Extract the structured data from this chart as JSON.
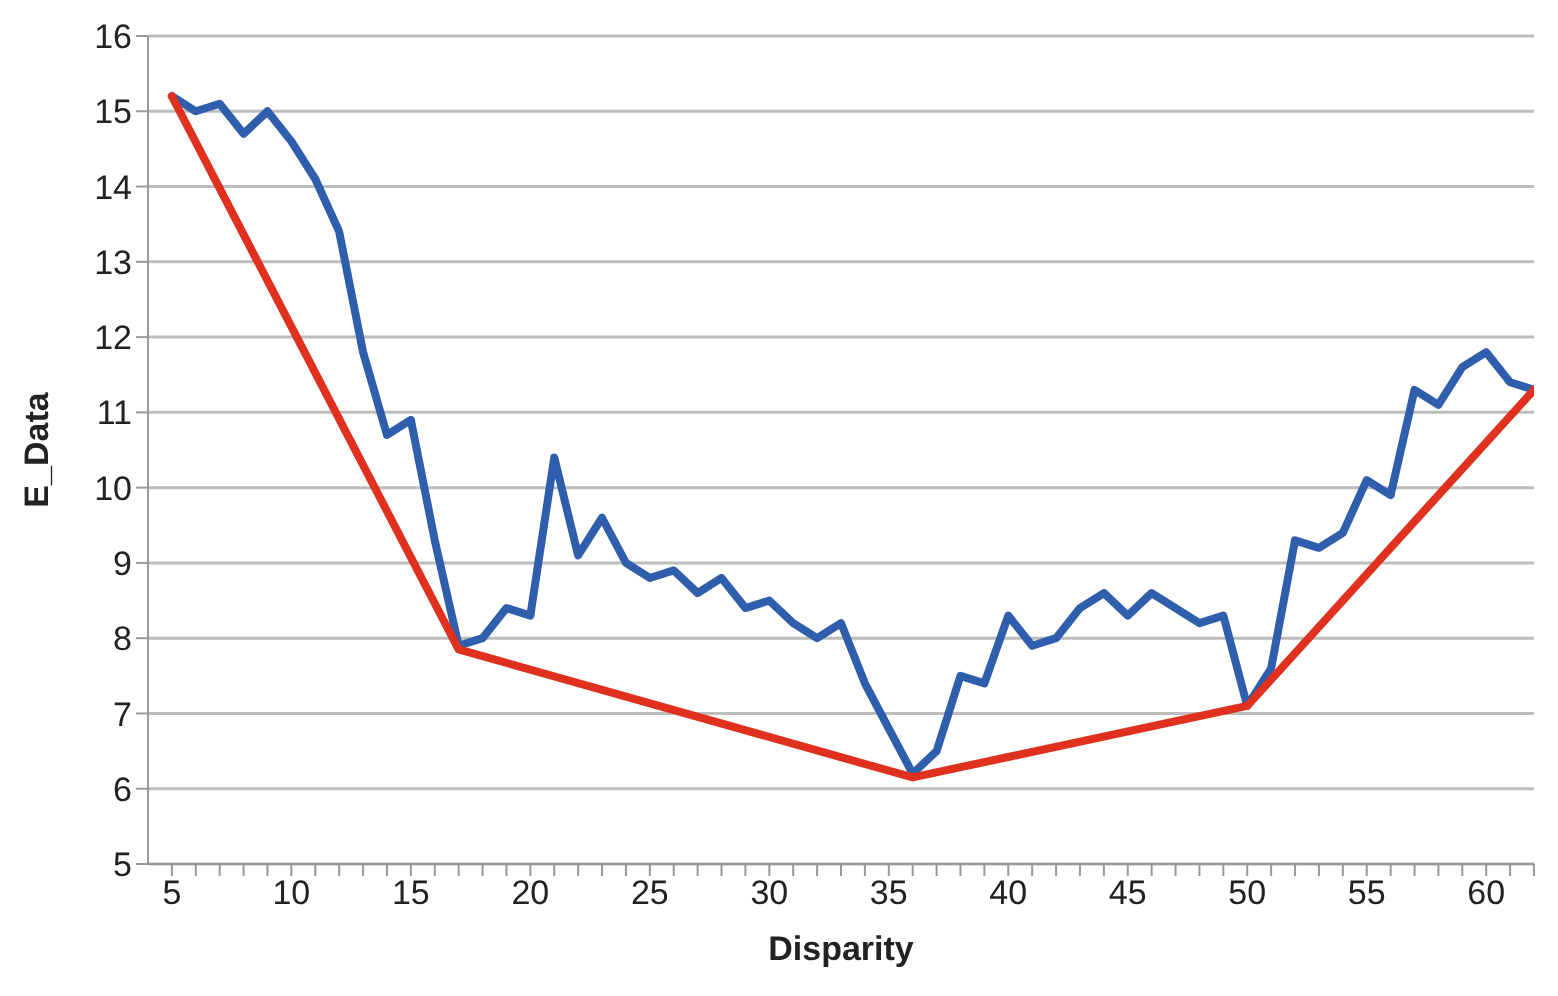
{
  "chart_data": {
    "type": "line",
    "xlabel": "Disparity",
    "ylabel": "E_Data",
    "series": [
      {
        "color": "#2f5ead",
        "x": [
          5,
          6,
          7,
          8,
          9,
          10,
          11,
          12,
          13,
          14,
          15,
          16,
          17,
          18,
          19,
          20,
          21,
          22,
          23,
          24,
          25,
          26,
          27,
          28,
          29,
          30,
          31,
          32,
          33,
          34,
          35,
          36,
          37,
          38,
          39,
          40,
          41,
          42,
          43,
          44,
          45,
          46,
          47,
          48,
          49,
          50,
          51,
          52,
          53,
          54,
          55,
          56,
          57,
          58,
          59,
          60,
          61,
          62
        ],
        "values": [
          15.2,
          15.0,
          15.1,
          14.7,
          15.0,
          14.6,
          14.1,
          13.4,
          11.8,
          10.7,
          10.9,
          9.3,
          7.9,
          8.0,
          8.4,
          8.3,
          10.4,
          9.1,
          9.6,
          9.0,
          8.8,
          8.9,
          8.6,
          8.8,
          8.4,
          8.5,
          8.2,
          8.0,
          8.2,
          7.4,
          6.8,
          6.2,
          6.5,
          7.5,
          7.4,
          8.3,
          7.9,
          8.0,
          8.4,
          8.6,
          8.3,
          8.6,
          8.4,
          8.2,
          8.3,
          7.1,
          7.6,
          9.3,
          9.2,
          9.4,
          10.1,
          9.9,
          11.3,
          11.1,
          11.6,
          11.8,
          11.4,
          11.3
        ]
      },
      {
        "color": "#e0301e",
        "x": [
          5,
          17,
          36,
          50,
          62
        ],
        "values": [
          15.2,
          7.85,
          6.15,
          7.1,
          11.3
        ]
      }
    ],
    "xlim": [
      4,
      62
    ],
    "xticks": [
      5,
      {
        "value": 6,
        "label": null
      },
      {
        "value": 7,
        "label": null
      },
      {
        "value": 8,
        "label": null
      },
      {
        "value": 9,
        "label": null
      },
      10,
      {
        "value": 11,
        "label": null
      },
      {
        "value": 12,
        "label": null
      },
      {
        "value": 13,
        "label": null
      },
      {
        "value": 14,
        "label": null
      },
      15,
      {
        "value": 16,
        "label": null
      },
      {
        "value": 17,
        "label": null
      },
      {
        "value": 18,
        "label": null
      },
      {
        "value": 19,
        "label": null
      },
      20,
      {
        "value": 21,
        "label": null
      },
      {
        "value": 22,
        "label": null
      },
      {
        "value": 23,
        "label": null
      },
      {
        "value": 24,
        "label": null
      },
      25,
      {
        "value": 26,
        "label": null
      },
      {
        "value": 27,
        "label": null
      },
      {
        "value": 28,
        "label": null
      },
      {
        "value": 29,
        "label": null
      },
      30,
      {
        "value": 31,
        "label": null
      },
      {
        "value": 32,
        "label": null
      },
      {
        "value": 33,
        "label": null
      },
      {
        "value": 34,
        "label": null
      },
      35,
      {
        "value": 36,
        "label": null
      },
      {
        "value": 37,
        "label": null
      },
      {
        "value": 38,
        "label": null
      },
      {
        "value": 39,
        "label": null
      },
      40,
      {
        "value": 41,
        "label": null
      },
      {
        "value": 42,
        "label": null
      },
      {
        "value": 43,
        "label": null
      },
      {
        "value": 44,
        "label": null
      },
      45,
      {
        "value": 46,
        "label": null
      },
      {
        "value": 47,
        "label": null
      },
      {
        "value": 48,
        "label": null
      },
      {
        "value": 49,
        "label": null
      },
      50,
      {
        "value": 51,
        "label": null
      },
      {
        "value": 52,
        "label": null
      },
      {
        "value": 53,
        "label": null
      },
      {
        "value": 54,
        "label": null
      },
      55,
      {
        "value": 56,
        "label": null
      },
      {
        "value": 57,
        "label": null
      },
      {
        "value": 58,
        "label": null
      },
      {
        "value": 59,
        "label": null
      },
      60,
      {
        "value": 61,
        "label": null
      },
      {
        "value": 62,
        "label": null
      }
    ],
    "ylim": [
      5,
      16
    ],
    "yticks": [
      5,
      6,
      7,
      8,
      9,
      10,
      11,
      12,
      13,
      14,
      15,
      16
    ],
    "grid": "y",
    "legend": false,
    "marker": "none",
    "line_style": "solid"
  }
}
